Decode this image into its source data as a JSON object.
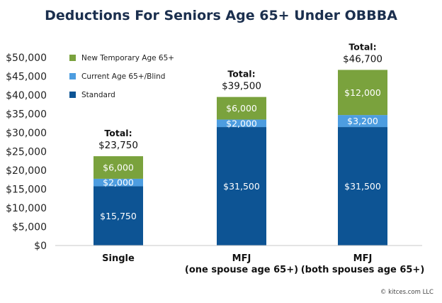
{
  "chart_data": {
    "type": "bar",
    "stacked": true,
    "title": "Deductions For Seniors Age 65+ Under OBBBA",
    "categories": [
      [
        "Single"
      ],
      [
        "MFJ",
        "(one spouse age 65+)"
      ],
      [
        "MFJ",
        "(both spouses age 65+)"
      ]
    ],
    "series": [
      {
        "name": "Standard",
        "color": "#0d5494",
        "values": [
          15750,
          31500,
          31500
        ],
        "labels": [
          "$15,750",
          "$31,500",
          "$31,500"
        ]
      },
      {
        "name": "Current Age 65+/Blind",
        "color": "#4d9de0",
        "values": [
          2000,
          2000,
          3200
        ],
        "labels": [
          "$2,000",
          "$2,000",
          "$3,200"
        ]
      },
      {
        "name": "New Temporary Age 65+",
        "color": "#7aa23d",
        "values": [
          6000,
          6000,
          12000
        ],
        "labels": [
          "$6,000",
          "$6,000",
          "$12,000"
        ]
      }
    ],
    "totals": {
      "label": "Total:",
      "values": [
        23750,
        39500,
        46700
      ],
      "labels": [
        "$23,750",
        "$39,500",
        "$46,700"
      ]
    },
    "ylim": [
      0,
      50000
    ],
    "yticks": [
      0,
      5000,
      10000,
      15000,
      20000,
      25000,
      30000,
      35000,
      40000,
      45000,
      50000
    ],
    "ytick_labels": [
      "$0",
      "$5,000",
      "$10,000",
      "$15,000",
      "$20,000",
      "$25,000",
      "$30,000",
      "$35,000",
      "$40,000",
      "$45,000",
      "$50,000"
    ],
    "xlabel": "",
    "ylabel": "",
    "legend": {
      "position": "top-left",
      "order": [
        "New Temporary Age 65+",
        "Current Age 65+/Blind",
        "Standard"
      ]
    },
    "grid": false
  },
  "footer": {
    "credit": "© kitces.com LLC"
  }
}
